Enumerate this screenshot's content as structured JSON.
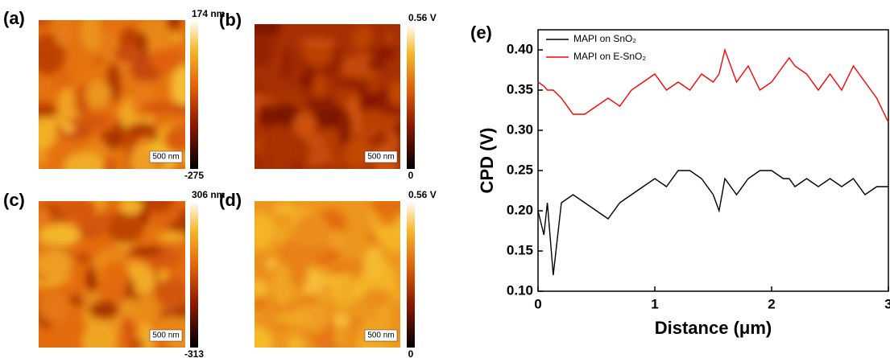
{
  "panels": [
    {
      "label": "(a)",
      "colorbar_max": "174 nm",
      "colorbar_min": "-275",
      "scale_bar": "500 nm"
    },
    {
      "label": "(b)",
      "colorbar_max": "0.56 V",
      "colorbar_min": "0",
      "scale_bar": "500 nm"
    },
    {
      "label": "(c)",
      "colorbar_max": "306 nm",
      "colorbar_min": "-313",
      "scale_bar": "500 nm"
    },
    {
      "label": "(d)",
      "colorbar_max": "0.56 V",
      "colorbar_min": "0",
      "scale_bar": "500 nm"
    }
  ],
  "chart_data": {
    "type": "line",
    "label": "(e)",
    "x_label": "Distance (μm)",
    "y_label": "CPD (V)",
    "x": [
      0,
      0.05,
      0.08,
      0.13,
      0.2,
      0.3,
      0.4,
      0.5,
      0.6,
      0.7,
      0.8,
      0.9,
      1.0,
      1.1,
      1.2,
      1.3,
      1.4,
      1.5,
      1.55,
      1.6,
      1.7,
      1.8,
      1.9,
      2.0,
      2.1,
      2.15,
      2.2,
      2.3,
      2.4,
      2.5,
      2.6,
      2.7,
      2.8,
      2.9,
      3.0
    ],
    "series": [
      {
        "name": "MAPI on SnO₂",
        "color": "#000000",
        "values": [
          0.2,
          0.17,
          0.21,
          0.12,
          0.21,
          0.22,
          0.21,
          0.2,
          0.19,
          0.21,
          0.22,
          0.23,
          0.24,
          0.23,
          0.25,
          0.25,
          0.24,
          0.22,
          0.2,
          0.24,
          0.22,
          0.24,
          0.25,
          0.25,
          0.24,
          0.24,
          0.23,
          0.24,
          0.23,
          0.24,
          0.23,
          0.24,
          0.22,
          0.23,
          0.23
        ]
      },
      {
        "name": "MAPI on E-SnO₂",
        "color": "#ff0000",
        "values": [
          0.36,
          0.355,
          0.35,
          0.35,
          0.34,
          0.32,
          0.32,
          0.33,
          0.34,
          0.33,
          0.35,
          0.36,
          0.37,
          0.35,
          0.36,
          0.35,
          0.37,
          0.36,
          0.37,
          0.4,
          0.36,
          0.38,
          0.35,
          0.36,
          0.38,
          0.39,
          0.38,
          0.37,
          0.35,
          0.37,
          0.35,
          0.38,
          0.36,
          0.34,
          0.31
        ]
      }
    ],
    "xlim": [
      0,
      3
    ],
    "ylim": [
      0.1,
      0.425
    ],
    "xticks": [
      0,
      1,
      2,
      3
    ],
    "yticks": [
      {
        "value": 0.1,
        "label": "0.10"
      },
      0.15,
      {
        "value": 0.2,
        "label": "0.20"
      },
      0.25,
      {
        "value": 0.3,
        "label": "0.30"
      },
      0.35,
      {
        "value": 0.4,
        "label": "0.40"
      }
    ],
    "legend": "upper left"
  }
}
